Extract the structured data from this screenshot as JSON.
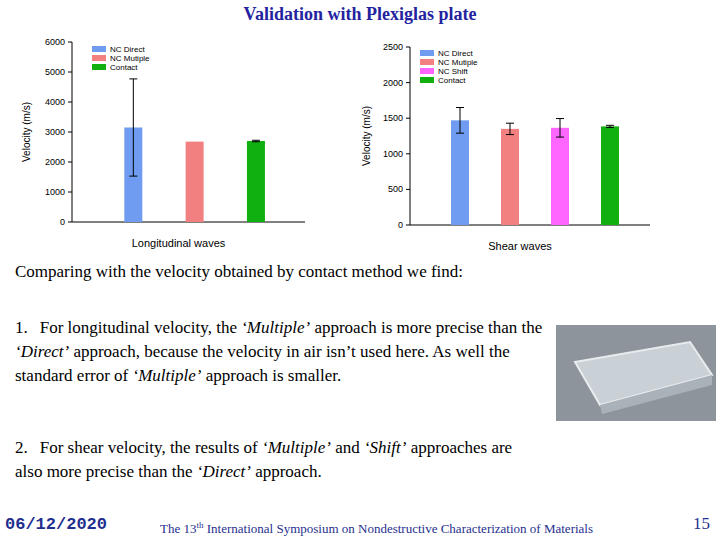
{
  "slide": {
    "title": "Validation with Plexiglas plate",
    "intro": "Comparing with the velocity obtained by contact method we find:",
    "points": [
      {
        "number": "1.",
        "segments": [
          {
            "text": "For longitudinal velocity, the ",
            "italic": false
          },
          {
            "text": "‘Multiple’",
            "italic": true
          },
          {
            "text": " approach is more precise than the ",
            "italic": false
          },
          {
            "text": "‘Direct’",
            "italic": true
          },
          {
            "text": " approach, because the velocity in air isn’t used here. As well the standard error of ",
            "italic": false
          },
          {
            "text": "‘Multiple’",
            "italic": true
          },
          {
            "text": " approach is smaller.",
            "italic": false
          }
        ]
      },
      {
        "number": "2.",
        "segments": [
          {
            "text": "For shear velocity, the results of ",
            "italic": false
          },
          {
            "text": "‘Multiple’",
            "italic": true
          },
          {
            "text": " and ",
            "italic": false
          },
          {
            "text": "‘Shift’",
            "italic": true
          },
          {
            "text": " approaches are also more precise than the ",
            "italic": false
          },
          {
            "text": "‘Direct’",
            "italic": true
          },
          {
            "text": " approach.",
            "italic": false
          }
        ]
      }
    ],
    "date": "06/12/2020",
    "footer": [
      {
        "text": "The 13",
        "superscript": false
      },
      {
        "text": "th",
        "superscript": true
      },
      {
        "text": " International Symposium on Nondestructive Characterization of Materials",
        "superscript": false
      }
    ],
    "page": "15"
  },
  "chart_data": [
    {
      "type": "bar",
      "x_label": "Longitudinal waves",
      "y_label": "Velocity (m/s)",
      "categories": [
        null
      ],
      "series": [
        {
          "name": "NC Direct",
          "color": "#6f9cf0",
          "values": [
            3150
          ],
          "errors": [
            1620
          ]
        },
        {
          "name": "NC Mutiple",
          "color": "#f28080",
          "values": [
            2680
          ],
          "errors": [
            null
          ]
        },
        {
          "name": "Contact",
          "color": "#10b010",
          "values": [
            2700
          ],
          "errors": [
            25
          ]
        }
      ],
      "ylim": [
        0,
        6000
      ],
      "yticks": [
        0,
        1000,
        2000,
        3000,
        4000,
        5000,
        6000
      ],
      "grid": false,
      "legend": "upper left"
    },
    {
      "type": "bar",
      "x_label": "Shear waves",
      "y_label": "Velocity (m/s)",
      "categories": [
        null
      ],
      "series": [
        {
          "name": "NC Direct",
          "color": "#6f9cf0",
          "values": [
            1470
          ],
          "errors": [
            180
          ]
        },
        {
          "name": "NC Mutiple",
          "color": "#f28080",
          "values": [
            1350
          ],
          "errors": [
            80
          ]
        },
        {
          "name": "NC Shift",
          "color": "#ff66ff",
          "values": [
            1365
          ],
          "errors": [
            130
          ]
        },
        {
          "name": "Contact",
          "color": "#10b010",
          "values": [
            1385
          ],
          "errors": [
            15
          ]
        }
      ],
      "ylim": [
        0,
        2500
      ],
      "yticks": [
        0,
        500,
        1000,
        1500,
        2000,
        2500
      ],
      "grid": false,
      "legend": "upper left"
    }
  ]
}
